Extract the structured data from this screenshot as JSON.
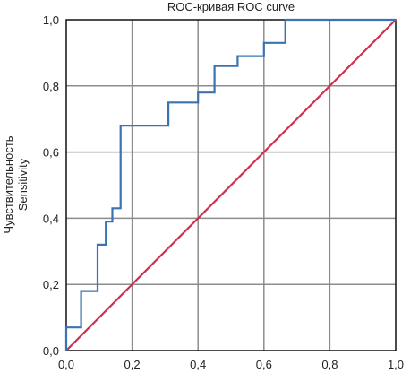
{
  "chart_data": {
    "type": "line",
    "title": "ROC-кривая  ROC curve",
    "ylabel_line1": "Чувствительность",
    "ylabel_line2": "Sensitivity",
    "xlabel": "",
    "xlim": [
      0,
      1
    ],
    "ylim": [
      0,
      1
    ],
    "grid": true,
    "x_ticks": [
      "0,0",
      "0,2",
      "0,4",
      "0,6",
      "0,8",
      "1,0"
    ],
    "y_ticks": [
      "0,0",
      "0,2",
      "0,4",
      "0,6",
      "0,8",
      "1,0"
    ],
    "series": [
      {
        "color": "#3a73b4",
        "x": [
          0,
          0,
          0.045,
          0.045,
          0.095,
          0.095,
          0.12,
          0.12,
          0.14,
          0.14,
          0.165,
          0.165,
          0.31,
          0.31,
          0.4,
          0.4,
          0.45,
          0.45,
          0.52,
          0.52,
          0.6,
          0.6,
          0.665,
          0.665,
          1.0
        ],
        "y": [
          0,
          0.07,
          0.07,
          0.18,
          0.18,
          0.32,
          0.32,
          0.39,
          0.39,
          0.43,
          0.43,
          0.68,
          0.68,
          0.75,
          0.75,
          0.78,
          0.78,
          0.86,
          0.86,
          0.89,
          0.89,
          0.93,
          0.93,
          1.0,
          1.0
        ]
      },
      {
        "color": "#d0304f",
        "x": [
          0,
          1
        ],
        "y": [
          0,
          1
        ]
      }
    ]
  }
}
